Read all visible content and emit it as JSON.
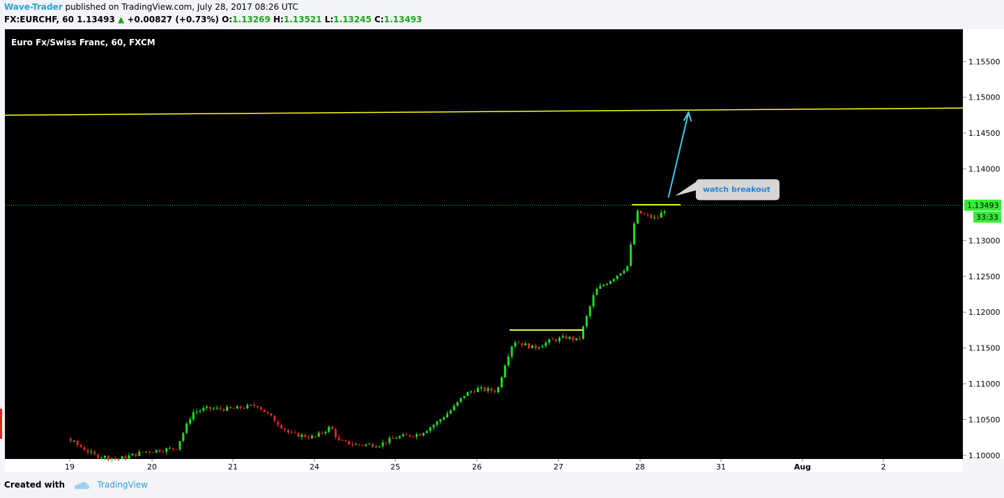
{
  "header": {
    "author": "Wave-Trader",
    "published_text": "published on TradingView.com, July 28, 2017 08:26 UTC",
    "symbol_line": "FX:EURCHF, 60",
    "last": "1.13493",
    "change": "+0.00827 (+0.73%)",
    "o_label": "O:",
    "o_value": "1.13269",
    "h_label": "H:",
    "h_value": "1.13521",
    "l_label": "L:",
    "l_value": "1.13245",
    "c_label": "C:",
    "c_value": "1.13493"
  },
  "footer": {
    "created_with": "Created with",
    "brand": "TradingView"
  },
  "colors": {
    "background": "#000000",
    "up": "#22dd22",
    "down": "#dd2222",
    "trendline": "#ffff22",
    "arrow": "#44ccee",
    "price_line": "#22cc22",
    "axis_text": "#000000"
  },
  "chart_data": {
    "type": "candlestick",
    "title": "Euro Fx/Swiss Franc, 60, FXCM",
    "ylim": [
      1.0995,
      1.1595
    ],
    "yticks": [
      "1.15500",
      "1.15000",
      "1.14500",
      "1.14000",
      "1.13500",
      "1.13000",
      "1.12500",
      "1.12000",
      "1.11500",
      "1.11000",
      "1.10500",
      "1.10000"
    ],
    "xticks": [
      "19",
      "20",
      "21",
      "24",
      "25",
      "26",
      "27",
      "28",
      "31",
      "Aug",
      "2"
    ],
    "last_price_label": "1.13493",
    "secondary_label": "33:33",
    "annotation": "watch breakout",
    "long_trendline": {
      "start": 1.1475,
      "end": 1.1485
    },
    "resistance_1": {
      "price": 1.1175,
      "from_session": 5.4,
      "to_session": 6.3
    },
    "resistance_2": {
      "price": 1.135,
      "from_session": 6.9,
      "to_session": 7.5
    },
    "arrow_target": 1.1479,
    "icon": "tradingview-cloud-icon"
  }
}
